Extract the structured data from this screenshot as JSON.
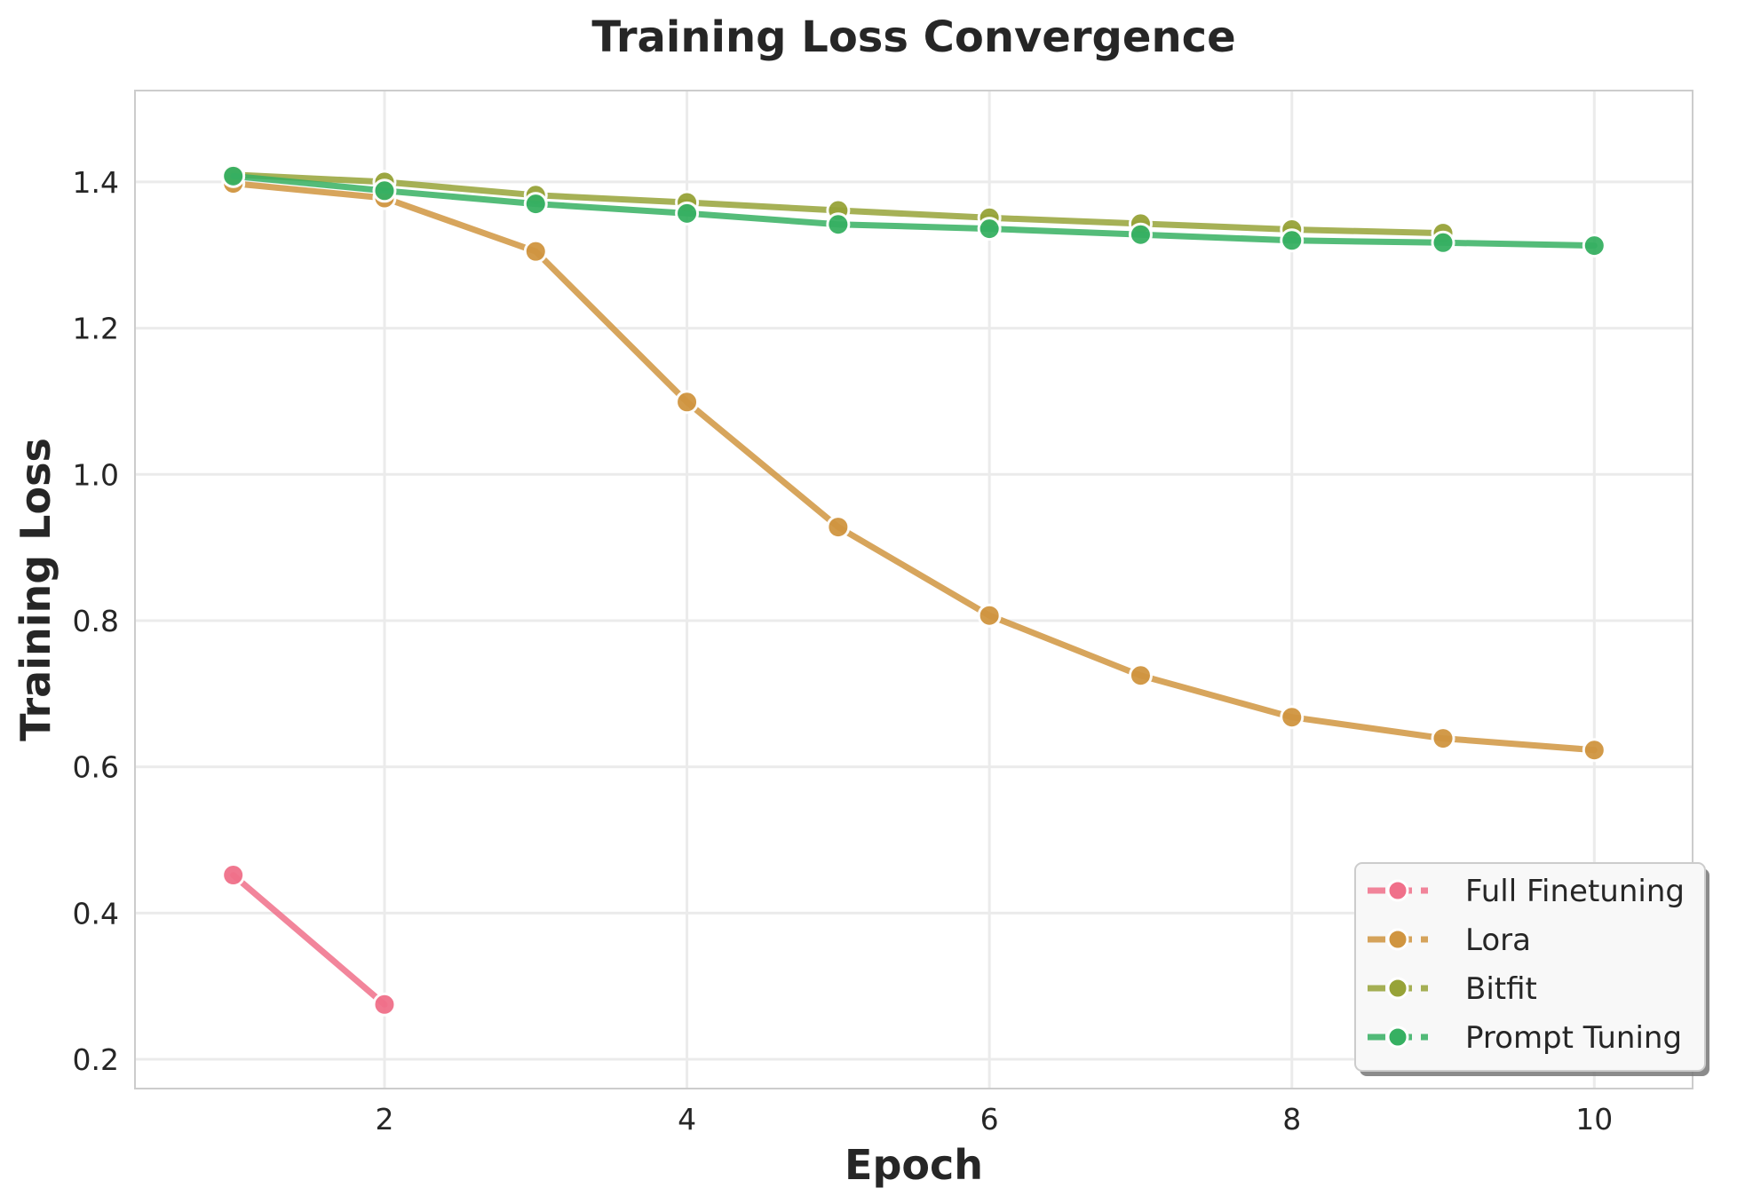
{
  "chart_data": {
    "type": "line",
    "title": "Training Loss Convergence",
    "xlabel": "Epoch",
    "ylabel": "Training Loss",
    "xlim": [
      0.35,
      10.65
    ],
    "ylim": [
      0.16,
      1.525
    ],
    "xticks": [
      2,
      4,
      6,
      8,
      10
    ],
    "yticks": [
      0.2,
      0.4,
      0.6,
      0.8,
      1.0,
      1.2,
      1.4
    ],
    "xtick_labels": [
      "2",
      "4",
      "6",
      "8",
      "10"
    ],
    "ytick_labels": [
      "0.2",
      "0.4",
      "0.6",
      "0.8",
      "1.0",
      "1.2",
      "1.4"
    ],
    "grid": true,
    "legend_position": "bottom-right",
    "series": [
      {
        "name": "Full Finetuning",
        "color": "#f0708a",
        "x": [
          1,
          2
        ],
        "y": [
          0.452,
          0.275
        ]
      },
      {
        "name": "Lora",
        "color": "#d09540",
        "x": [
          1,
          2,
          3,
          4,
          5,
          6,
          7,
          8,
          9,
          10
        ],
        "y": [
          1.398,
          1.378,
          1.305,
          1.099,
          0.928,
          0.807,
          0.725,
          0.668,
          0.639,
          0.623
        ]
      },
      {
        "name": "Bitfit",
        "color": "#97a338",
        "x": [
          1,
          2,
          3,
          4,
          5,
          6,
          7,
          8,
          9
        ],
        "y": [
          1.41,
          1.4,
          1.382,
          1.372,
          1.361,
          1.351,
          1.343,
          1.335,
          1.33
        ]
      },
      {
        "name": "Prompt Tuning",
        "color": "#36b062",
        "x": [
          1,
          2,
          3,
          4,
          5,
          6,
          7,
          8,
          9,
          10
        ],
        "y": [
          1.408,
          1.388,
          1.37,
          1.357,
          1.342,
          1.336,
          1.328,
          1.32,
          1.317,
          1.313
        ]
      }
    ]
  }
}
